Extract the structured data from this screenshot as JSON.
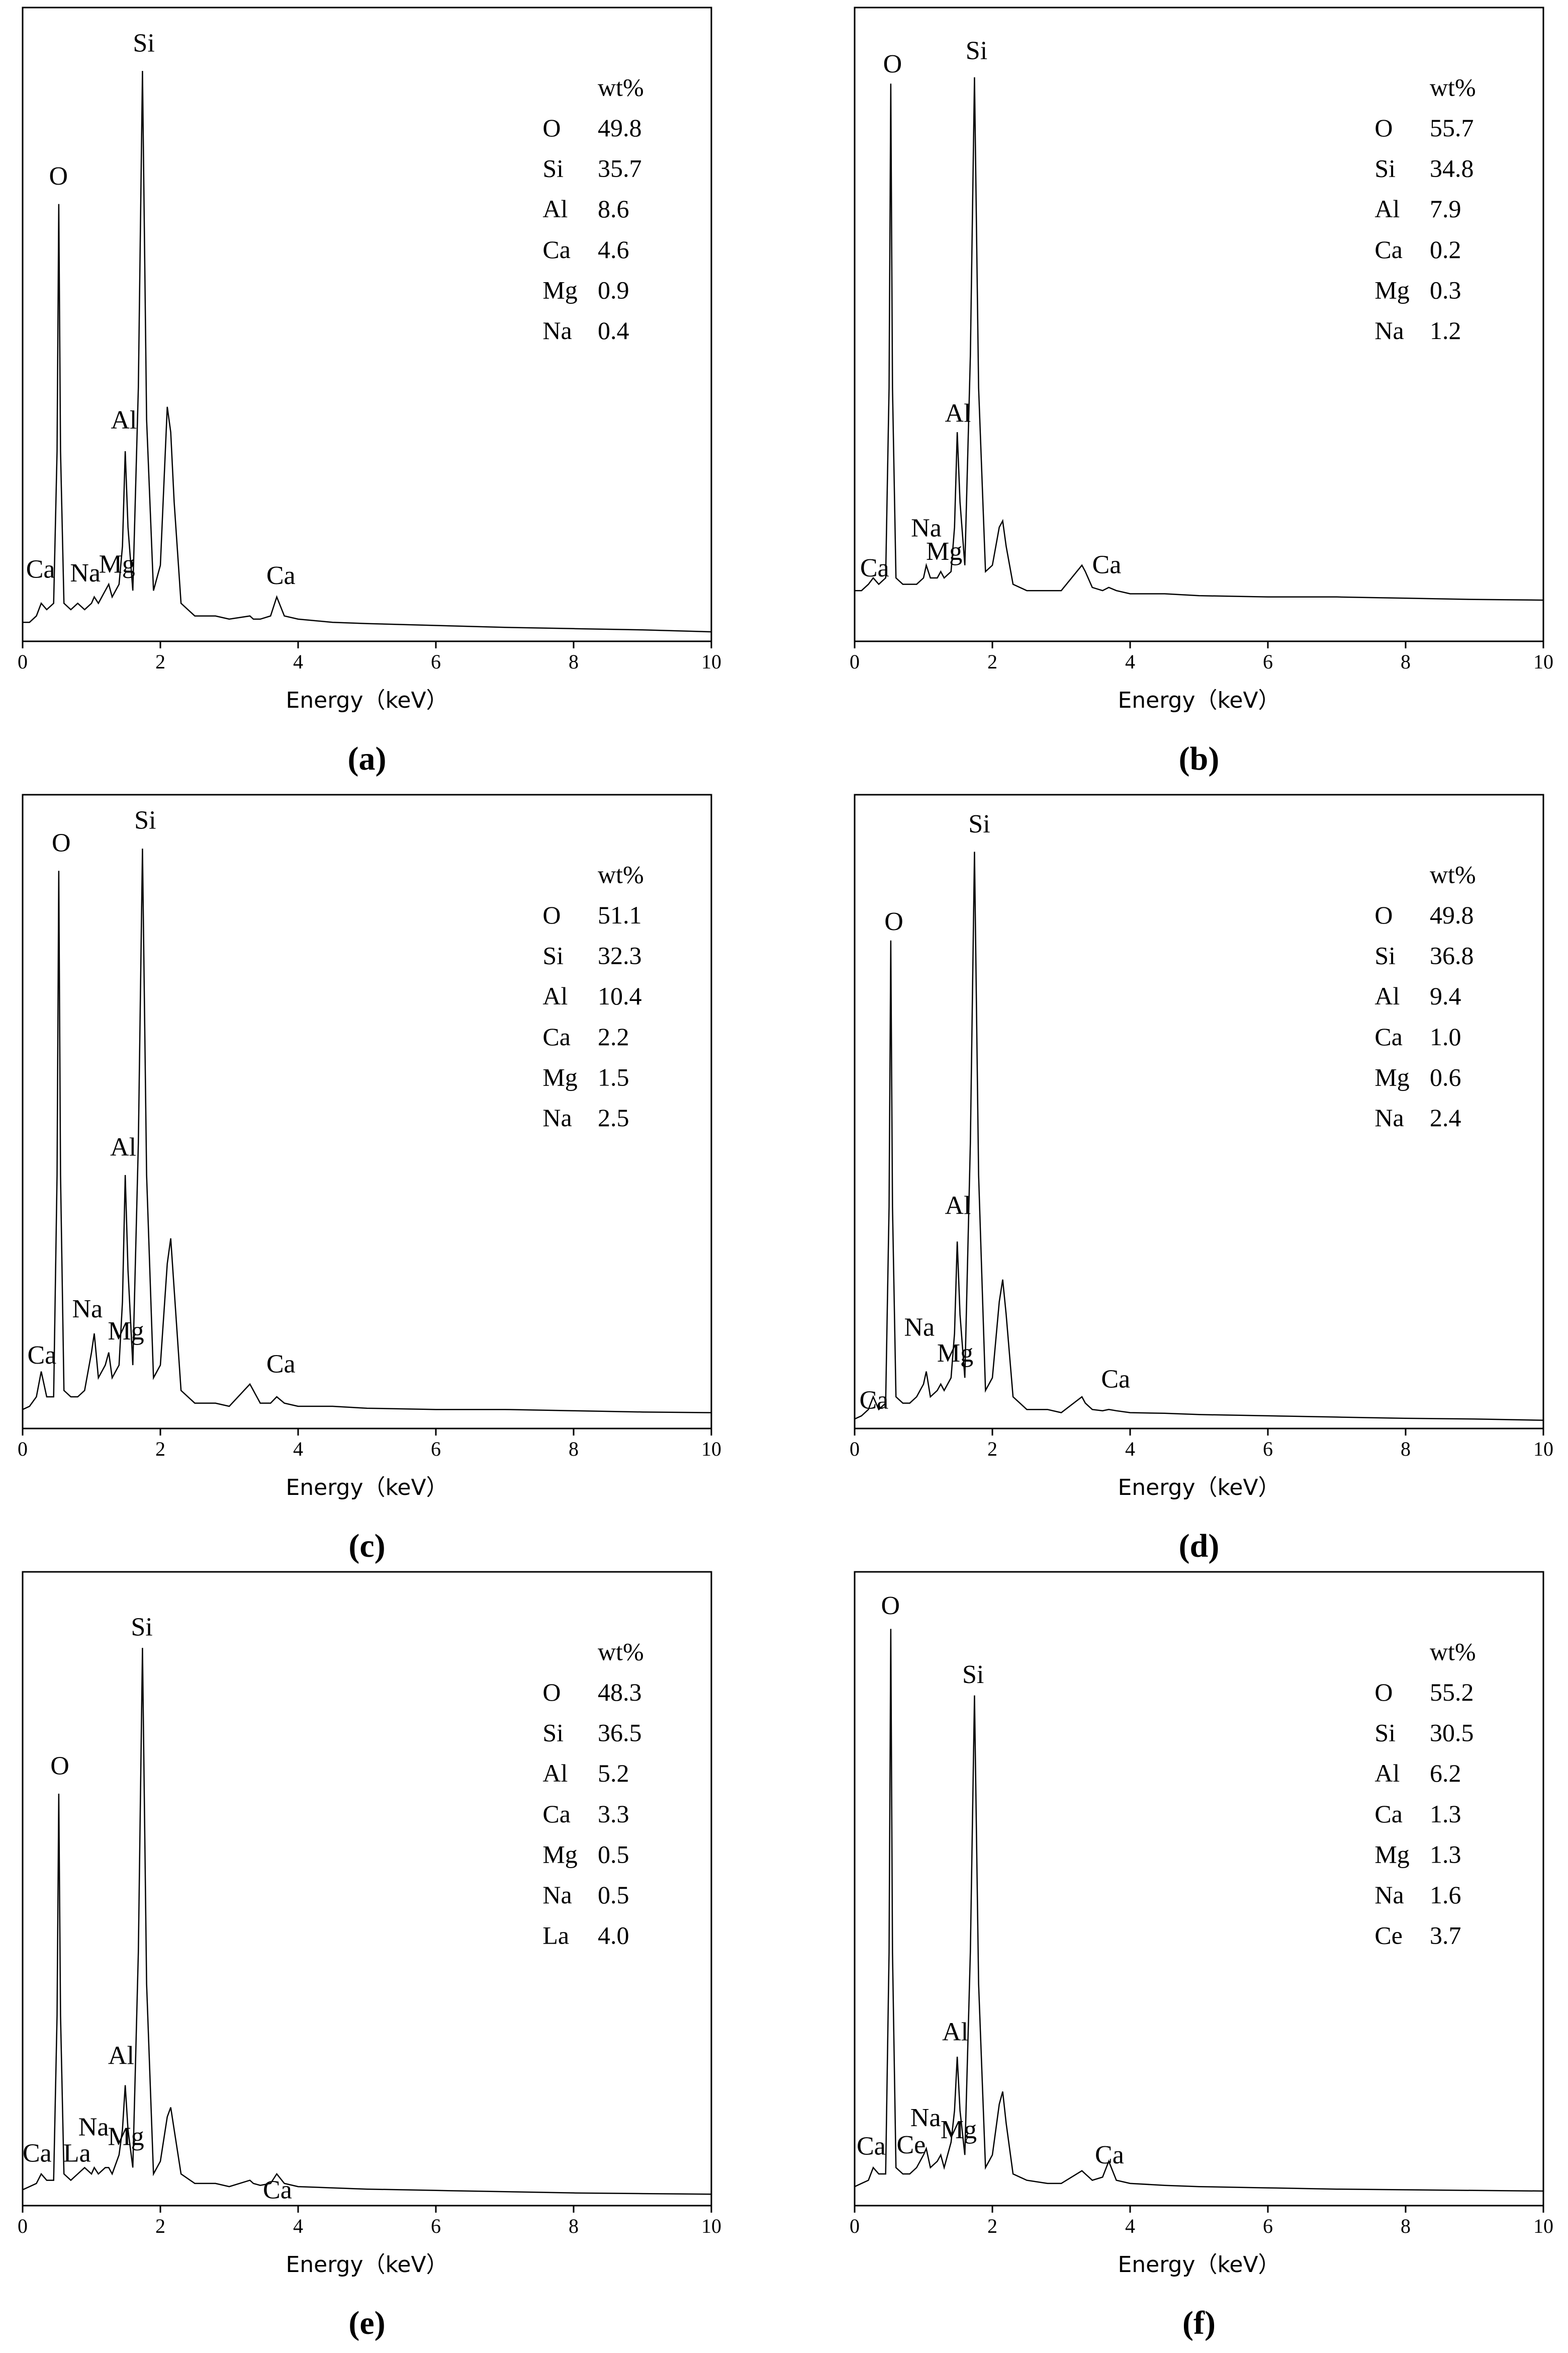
{
  "chart_data": [
    {
      "type": "line",
      "panel_label": "(a)",
      "xlabel": "Energy（keV）",
      "xlim": [
        0,
        10
      ],
      "xticks": [
        0,
        2,
        4,
        6,
        8,
        10
      ],
      "ylim": [
        0,
        100
      ],
      "color": "#000000",
      "x": [
        0,
        0.1,
        0.2,
        0.27,
        0.35,
        0.45,
        0.5,
        0.525,
        0.55,
        0.6,
        0.7,
        0.8,
        0.9,
        1.0,
        1.04,
        1.1,
        1.2,
        1.25,
        1.3,
        1.4,
        1.45,
        1.49,
        1.53,
        1.6,
        1.68,
        1.74,
        1.8,
        1.9,
        2.0,
        2.1,
        2.15,
        2.2,
        2.3,
        2.5,
        2.8,
        3.0,
        3.3,
        3.35,
        3.45,
        3.6,
        3.69,
        3.8,
        4.0,
        4.5,
        5,
        6,
        7,
        8,
        9,
        10
      ],
      "values": [
        3,
        3,
        4,
        6,
        5,
        6,
        30,
        69,
        30,
        6,
        5,
        6,
        5,
        6,
        7,
        6,
        8,
        9,
        7,
        9,
        15,
        30,
        18,
        8,
        40,
        90,
        35,
        8,
        12,
        37,
        33,
        22,
        6,
        4,
        4,
        3.5,
        4,
        3.5,
        3.5,
        4,
        7,
        4,
        3.5,
        3,
        2.8,
        2.5,
        2.2,
        2,
        1.8,
        1.5
      ],
      "peaks": [
        {
          "label": "Si",
          "x": 1.76,
          "y": 94
        },
        {
          "label": "O",
          "x": 0.52,
          "y": 73
        },
        {
          "label": "Al",
          "x": 1.47,
          "y": 34.5
        },
        {
          "label": "Ca",
          "x": 0.26,
          "y": 11
        },
        {
          "label": "Na",
          "x": 0.91,
          "y": 10.4
        },
        {
          "label": "Mg",
          "x": 1.37,
          "y": 11.8
        },
        {
          "label": "Ca",
          "x": 3.75,
          "y": 10
        }
      ],
      "composition": {
        "header": "wt%",
        "rows": [
          [
            "O",
            "49.8"
          ],
          [
            "Si",
            "35.7"
          ],
          [
            "Al",
            "8.6"
          ],
          [
            "Ca",
            "4.6"
          ],
          [
            "Mg",
            "0.9"
          ],
          [
            "Na",
            "0.4"
          ]
        ]
      }
    },
    {
      "type": "line",
      "panel_label": "(b)",
      "xlabel": "Energy（keV）",
      "xlim": [
        0,
        10
      ],
      "xticks": [
        0,
        2,
        4,
        6,
        8,
        10
      ],
      "ylim": [
        0,
        100
      ],
      "color": "#000000",
      "x": [
        0,
        0.1,
        0.2,
        0.27,
        0.35,
        0.45,
        0.5,
        0.525,
        0.55,
        0.6,
        0.7,
        0.8,
        0.9,
        1.0,
        1.04,
        1.1,
        1.2,
        1.25,
        1.3,
        1.4,
        1.45,
        1.49,
        1.53,
        1.6,
        1.68,
        1.74,
        1.8,
        1.9,
        2.0,
        2.1,
        2.15,
        2.2,
        2.3,
        2.5,
        2.8,
        3.0,
        3.3,
        3.35,
        3.45,
        3.6,
        3.69,
        3.8,
        4.0,
        4.5,
        5,
        6,
        7,
        8,
        9,
        10
      ],
      "values": [
        8,
        8,
        9,
        10,
        9,
        10,
        40,
        88,
        40,
        10,
        9,
        9,
        9,
        10,
        12,
        10,
        10,
        11,
        10,
        11,
        18,
        33,
        22,
        12,
        45,
        89,
        40,
        11,
        12,
        18,
        19,
        15,
        9,
        8,
        8,
        8,
        12,
        11,
        8.5,
        8,
        8.5,
        8,
        7.5,
        7.5,
        7.2,
        7,
        7,
        6.8,
        6.6,
        6.5
      ],
      "peaks": [
        {
          "label": "Si",
          "x": 1.77,
          "y": 92.8
        },
        {
          "label": "O",
          "x": 0.55,
          "y": 90.7
        },
        {
          "label": "Al",
          "x": 1.5,
          "y": 35.6
        },
        {
          "label": "Na",
          "x": 1.04,
          "y": 17.5
        },
        {
          "label": "Mg",
          "x": 1.3,
          "y": 13.8
        },
        {
          "label": "Ca",
          "x": 0.29,
          "y": 11.2
        },
        {
          "label": "Ca",
          "x": 3.66,
          "y": 11.7
        }
      ],
      "composition": {
        "header": "wt%",
        "rows": [
          [
            "O",
            "55.7"
          ],
          [
            "Si",
            "34.8"
          ],
          [
            "Al",
            "7.9"
          ],
          [
            "Ca",
            "0.2"
          ],
          [
            "Mg",
            "0.3"
          ],
          [
            "Na",
            "1.2"
          ]
        ]
      }
    },
    {
      "type": "line",
      "panel_label": "(c)",
      "xlabel": "Energy（keV）",
      "xlim": [
        0,
        10
      ],
      "xticks": [
        0,
        2,
        4,
        6,
        8,
        10
      ],
      "ylim": [
        0,
        100
      ],
      "color": "#000000",
      "x": [
        0,
        0.1,
        0.2,
        0.27,
        0.35,
        0.45,
        0.5,
        0.525,
        0.55,
        0.6,
        0.7,
        0.8,
        0.9,
        1.0,
        1.04,
        1.1,
        1.2,
        1.25,
        1.3,
        1.4,
        1.45,
        1.49,
        1.53,
        1.6,
        1.68,
        1.74,
        1.8,
        1.9,
        2.0,
        2.1,
        2.15,
        2.2,
        2.3,
        2.5,
        2.8,
        3.0,
        3.3,
        3.35,
        3.45,
        3.6,
        3.69,
        3.8,
        4.0,
        4.5,
        5,
        6,
        7,
        8,
        9,
        10
      ],
      "values": [
        3,
        3.5,
        5,
        9,
        5,
        5,
        40,
        88,
        40,
        6,
        5,
        5,
        6,
        12,
        15,
        8,
        10,
        12,
        8,
        10,
        20,
        40,
        25,
        10,
        45,
        91.5,
        40,
        8,
        10,
        26,
        30,
        22,
        6,
        4,
        4,
        3.5,
        7,
        6,
        4,
        4,
        5,
        4,
        3.5,
        3.5,
        3.2,
        3,
        3,
        2.8,
        2.6,
        2.5
      ],
      "peaks": [
        {
          "label": "Si",
          "x": 1.78,
          "y": 95.6
        },
        {
          "label": "O",
          "x": 0.56,
          "y": 92
        },
        {
          "label": "Al",
          "x": 1.46,
          "y": 44
        },
        {
          "label": "Na",
          "x": 0.94,
          "y": 18.5
        },
        {
          "label": "Mg",
          "x": 1.5,
          "y": 15
        },
        {
          "label": "Ca",
          "x": 0.28,
          "y": 11.2
        },
        {
          "label": "Ca",
          "x": 3.75,
          "y": 9.8
        }
      ],
      "composition": {
        "header": "wt%",
        "rows": [
          [
            "O",
            "51.1"
          ],
          [
            "Si",
            "32.3"
          ],
          [
            "Al",
            "10.4"
          ],
          [
            "Ca",
            "2.2"
          ],
          [
            "Mg",
            "1.5"
          ],
          [
            "Na",
            "2.5"
          ]
        ]
      }
    },
    {
      "type": "line",
      "panel_label": "(d)",
      "xlabel": "Energy（keV）",
      "xlim": [
        0,
        10
      ],
      "xticks": [
        0,
        2,
        4,
        6,
        8,
        10
      ],
      "ylim": [
        0,
        100
      ],
      "color": "#000000",
      "x": [
        0,
        0.1,
        0.2,
        0.27,
        0.35,
        0.45,
        0.5,
        0.525,
        0.55,
        0.6,
        0.7,
        0.8,
        0.9,
        1.0,
        1.04,
        1.1,
        1.2,
        1.25,
        1.3,
        1.4,
        1.45,
        1.49,
        1.53,
        1.6,
        1.68,
        1.74,
        1.8,
        1.9,
        2.0,
        2.1,
        2.15,
        2.2,
        2.3,
        2.5,
        2.8,
        3.0,
        3.3,
        3.35,
        3.45,
        3.6,
        3.69,
        3.8,
        4.0,
        4.5,
        5,
        6,
        7,
        8,
        9,
        10
      ],
      "values": [
        1.5,
        2,
        3,
        5,
        3,
        4,
        35,
        77,
        35,
        5,
        4,
        4,
        5,
        7,
        9,
        5,
        6,
        7,
        6,
        8,
        15,
        29.5,
        18,
        8,
        45,
        91,
        40,
        6,
        8,
        20,
        23.5,
        18,
        5,
        3,
        3,
        2.5,
        5,
        4,
        3,
        2.8,
        3,
        2.8,
        2.5,
        2.4,
        2.2,
        2,
        1.8,
        1.6,
        1.5,
        1.3
      ],
      "peaks": [
        {
          "label": "Si",
          "x": 1.81,
          "y": 95
        },
        {
          "label": "O",
          "x": 0.57,
          "y": 79.6
        },
        {
          "label": "Al",
          "x": 1.5,
          "y": 34.8
        },
        {
          "label": "Na",
          "x": 0.94,
          "y": 15.6
        },
        {
          "label": "Mg",
          "x": 1.46,
          "y": 11.5
        },
        {
          "label": "Ca",
          "x": 0.28,
          "y": 4.1
        },
        {
          "label": "Ca",
          "x": 3.79,
          "y": 7.4
        }
      ],
      "composition": {
        "header": "wt%",
        "rows": [
          [
            "O",
            "49.8"
          ],
          [
            "Si",
            "36.8"
          ],
          [
            "Al",
            "9.4"
          ],
          [
            "Ca",
            "1.0"
          ],
          [
            "Mg",
            "0.6"
          ],
          [
            "Na",
            "2.4"
          ]
        ]
      }
    },
    {
      "type": "line",
      "panel_label": "(e)",
      "xlabel": "Energy（keV）",
      "xlim": [
        0,
        10
      ],
      "xticks": [
        0,
        2,
        4,
        6,
        8,
        10
      ],
      "ylim": [
        0,
        100
      ],
      "color": "#000000",
      "x": [
        0,
        0.1,
        0.2,
        0.27,
        0.35,
        0.45,
        0.5,
        0.525,
        0.55,
        0.6,
        0.7,
        0.8,
        0.9,
        1.0,
        1.04,
        1.1,
        1.2,
        1.25,
        1.3,
        1.4,
        1.45,
        1.49,
        1.53,
        1.6,
        1.68,
        1.74,
        1.8,
        1.9,
        2.0,
        2.1,
        2.15,
        2.2,
        2.3,
        2.5,
        2.8,
        3.0,
        3.3,
        3.35,
        3.45,
        3.6,
        3.69,
        3.8,
        4.0,
        4.5,
        5,
        6,
        7,
        8,
        9,
        10
      ],
      "values": [
        2.5,
        3,
        3.5,
        5,
        4,
        4,
        30,
        65,
        30,
        5,
        4,
        5,
        6,
        5,
        6,
        5,
        6,
        6,
        5,
        8,
        12,
        19,
        12,
        6,
        40,
        88,
        35,
        5,
        7,
        14,
        15.5,
        12,
        5,
        3.5,
        3.5,
        3,
        4,
        3.5,
        3.2,
        3.5,
        5,
        3.5,
        3,
        2.8,
        2.6,
        2.4,
        2.2,
        2,
        1.9,
        1.8
      ],
      "peaks": [
        {
          "label": "Si",
          "x": 1.73,
          "y": 90.9
        },
        {
          "label": "O",
          "x": 0.54,
          "y": 69
        },
        {
          "label": "Al",
          "x": 1.43,
          "y": 23.3
        },
        {
          "label": "Na",
          "x": 1.03,
          "y": 12
        },
        {
          "label": "Mg",
          "x": 1.5,
          "y": 10.5
        },
        {
          "label": "Ca",
          "x": 0.21,
          "y": 7.9
        },
        {
          "label": "La",
          "x": 0.79,
          "y": 7.9
        },
        {
          "label": "Ca",
          "x": 3.7,
          "y": 2.1
        }
      ],
      "composition": {
        "header": "wt%",
        "rows": [
          [
            "O",
            "48.3"
          ],
          [
            "Si",
            "36.5"
          ],
          [
            "Al",
            "5.2"
          ],
          [
            "Ca",
            "3.3"
          ],
          [
            "Mg",
            "0.5"
          ],
          [
            "Na",
            "0.5"
          ],
          [
            "La",
            "4.0"
          ]
        ]
      }
    },
    {
      "type": "line",
      "panel_label": "(f)",
      "xlabel": "Energy（keV）",
      "xlim": [
        0,
        10
      ],
      "xticks": [
        0,
        2,
        4,
        6,
        8,
        10
      ],
      "ylim": [
        0,
        100
      ],
      "color": "#000000",
      "x": [
        0,
        0.1,
        0.2,
        0.27,
        0.35,
        0.45,
        0.5,
        0.525,
        0.55,
        0.6,
        0.7,
        0.8,
        0.9,
        1.0,
        1.04,
        1.1,
        1.2,
        1.25,
        1.3,
        1.4,
        1.45,
        1.49,
        1.53,
        1.6,
        1.68,
        1.74,
        1.8,
        1.9,
        2.0,
        2.1,
        2.15,
        2.2,
        2.3,
        2.5,
        2.8,
        3.0,
        3.3,
        3.35,
        3.45,
        3.6,
        3.69,
        3.8,
        4.0,
        4.5,
        5,
        6,
        7,
        8,
        9,
        10
      ],
      "values": [
        3,
        3.5,
        4,
        6,
        5,
        5,
        40,
        91,
        40,
        6,
        5,
        5,
        6,
        8,
        9,
        6,
        7,
        8,
        6,
        10,
        15,
        23.5,
        15,
        8,
        40,
        80.5,
        35,
        6,
        8,
        16,
        18,
        13,
        5,
        4,
        3.5,
        3.5,
        5.5,
        5,
        4,
        4.5,
        7,
        4,
        3.5,
        3.2,
        3,
        2.8,
        2.6,
        2.5,
        2.4,
        2.3
      ],
      "peaks": [
        {
          "label": "Si",
          "x": 1.72,
          "y": 83.4
        },
        {
          "label": "O",
          "x": 0.52,
          "y": 94.3
        },
        {
          "label": "Al",
          "x": 1.46,
          "y": 27
        },
        {
          "label": "Na",
          "x": 1.03,
          "y": 13.5
        },
        {
          "label": "Mg",
          "x": 1.51,
          "y": 11.6
        },
        {
          "label": "Ca",
          "x": 0.24,
          "y": 9
        },
        {
          "label": "Ce",
          "x": 0.82,
          "y": 9.2
        },
        {
          "label": "Ca",
          "x": 3.7,
          "y": 7.6
        }
      ],
      "composition": {
        "header": "wt%",
        "rows": [
          [
            "O",
            "55.2"
          ],
          [
            "Si",
            "30.5"
          ],
          [
            "Al",
            "6.2"
          ],
          [
            "Ca",
            "1.3"
          ],
          [
            "Mg",
            "1.3"
          ],
          [
            "Na",
            "1.6"
          ],
          [
            "Ce",
            "3.7"
          ]
        ]
      }
    }
  ]
}
